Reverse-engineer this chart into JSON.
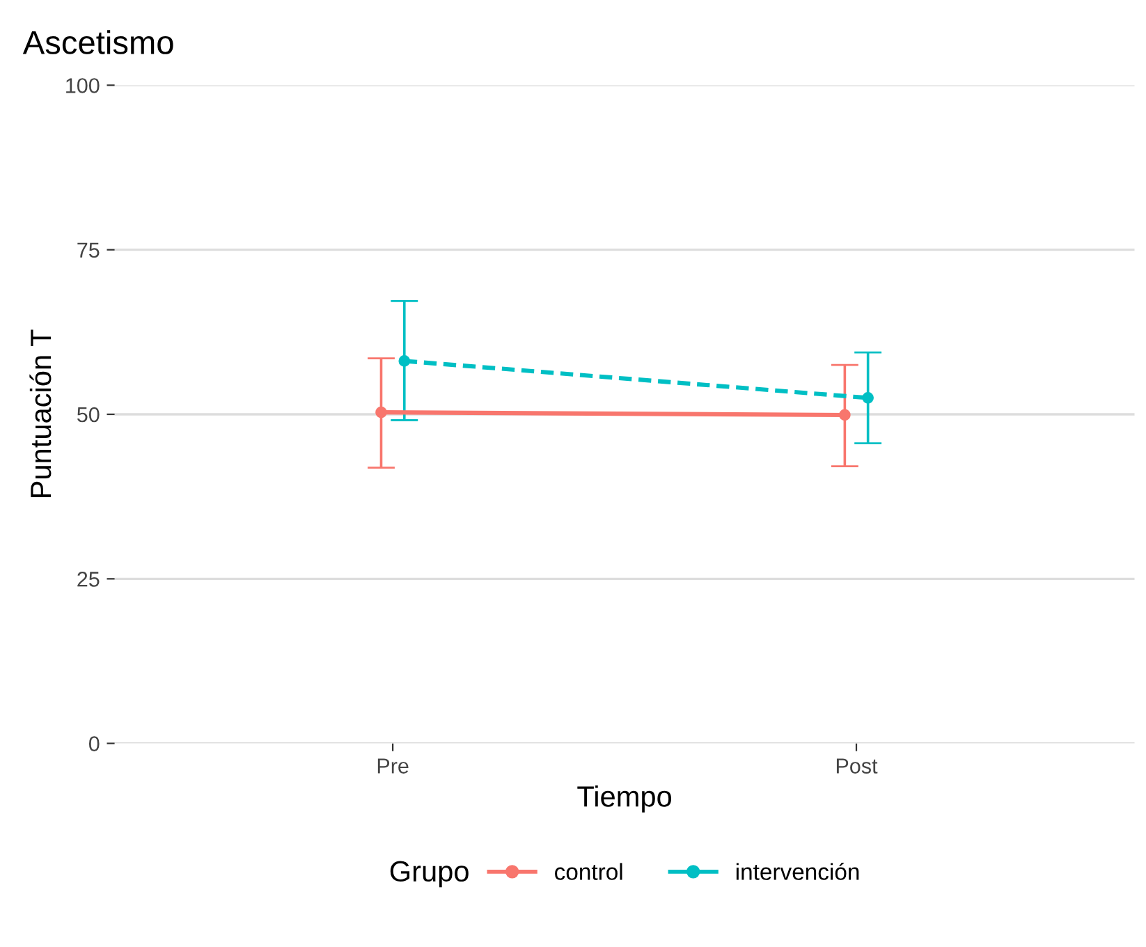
{
  "chart_data": {
    "type": "line",
    "title": "Ascetismo",
    "xlabel": "Tiempo",
    "ylabel": "Puntuación T",
    "legend_title": "Grupo",
    "categories": [
      "Pre",
      "Post"
    ],
    "series": [
      {
        "name": "control",
        "color": "#f8766d",
        "values": [
          50.3,
          49.9
        ],
        "errors": [
          [
            41.9,
            58.5
          ],
          [
            42.1,
            57.5
          ]
        ],
        "line_style": "solid"
      },
      {
        "name": "intervención",
        "color": "#00bfc4",
        "values": [
          58.1,
          52.5
        ],
        "errors": [
          [
            49.1,
            67.2
          ],
          [
            45.6,
            59.4
          ]
        ],
        "line_style": "dashed"
      }
    ],
    "ylim": [
      0,
      100
    ],
    "yticks": [
      0,
      25,
      50,
      75,
      100
    ],
    "grid": "y",
    "legend": "bottom",
    "marker": "circle"
  }
}
